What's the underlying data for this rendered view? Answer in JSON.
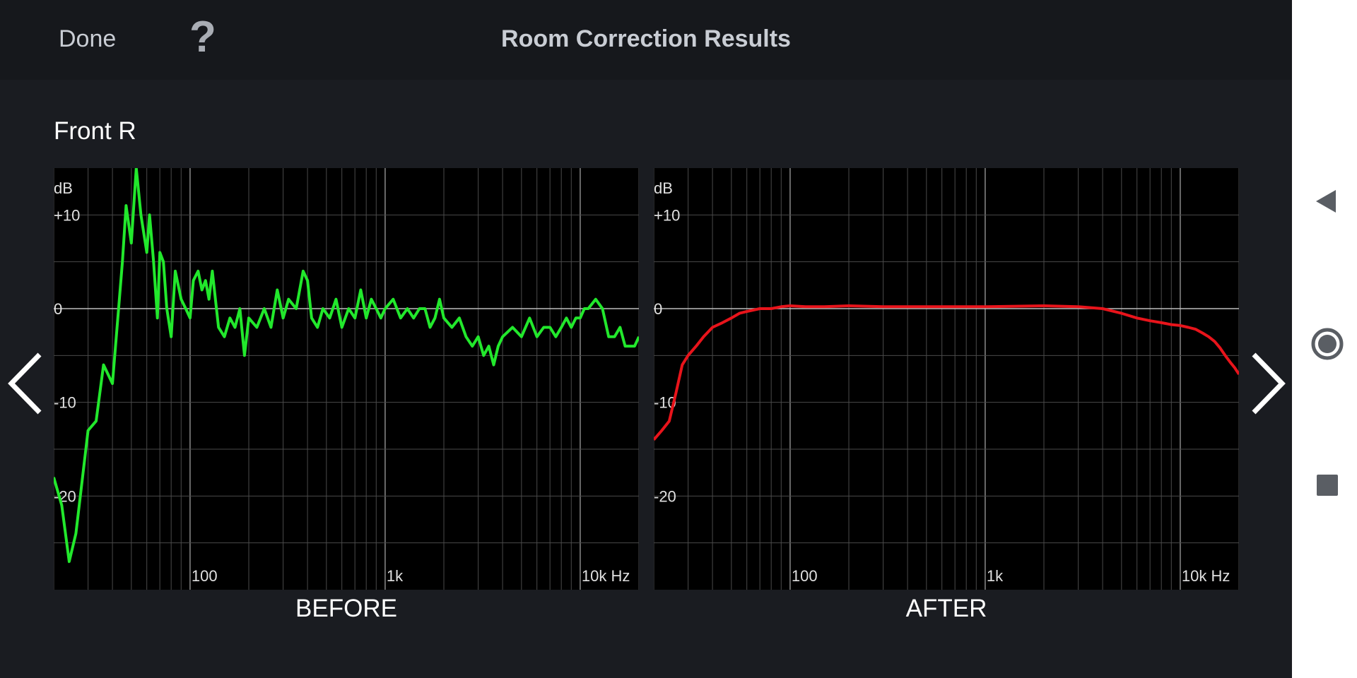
{
  "header": {
    "done_label": "Done",
    "help_label": "?",
    "title": "Room Correction Results"
  },
  "speaker_name": "Front R",
  "icons": {
    "prev": "chevron-left-icon",
    "next": "chevron-right-icon",
    "help": "question-mark-icon",
    "back": "back-triangle-icon",
    "home": "home-circle-icon",
    "recent": "recent-square-icon"
  },
  "colors": {
    "before_curve": "#22e82c",
    "after_curve": "#e8141b",
    "background": "#1a1c21",
    "plot_background": "#000000"
  },
  "chart_data": [
    {
      "type": "line",
      "caption": "BEFORE",
      "xscale": "log",
      "xlim": [
        20,
        20000
      ],
      "ylim": [
        -30,
        15
      ],
      "ylabel": "dB",
      "ytick_labels": [
        "+10",
        "0",
        "-10",
        "-20"
      ],
      "ytick_values": [
        10,
        0,
        -10,
        -20
      ],
      "xtick_labels": [
        "100",
        "1k",
        "10k Hz"
      ],
      "xtick_values": [
        100,
        1000,
        10000
      ],
      "grid": true,
      "series": [
        {
          "color": "#22e82c",
          "x": [
            20,
            22,
            24,
            26,
            30,
            33,
            36,
            40,
            43,
            45,
            47,
            50,
            53,
            56,
            60,
            62,
            65,
            68,
            70,
            73,
            76,
            80,
            84,
            90,
            95,
            100,
            104,
            110,
            115,
            120,
            125,
            130,
            140,
            150,
            160,
            170,
            180,
            190,
            200,
            220,
            240,
            260,
            280,
            300,
            320,
            350,
            380,
            400,
            420,
            450,
            480,
            520,
            560,
            600,
            650,
            700,
            750,
            800,
            850,
            900,
            950,
            1000,
            1100,
            1200,
            1300,
            1400,
            1500,
            1600,
            1700,
            1800,
            1900,
            2000,
            2200,
            2400,
            2600,
            2800,
            3000,
            3200,
            3400,
            3600,
            3800,
            4000,
            4500,
            5000,
            5500,
            6000,
            6500,
            7000,
            7500,
            8000,
            8500,
            9000,
            9500,
            10000,
            10500,
            11000,
            12000,
            13000,
            14000,
            15000,
            16000,
            17000,
            18000,
            19000,
            20000
          ],
          "values": [
            -18,
            -21,
            -27,
            -24,
            -13,
            -12,
            -6,
            -8,
            0,
            5,
            11,
            7,
            15,
            10,
            6,
            10,
            5,
            -1,
            6,
            5,
            0,
            -3,
            4,
            1,
            0,
            -1,
            3,
            4,
            2,
            3,
            1,
            4,
            -2,
            -3,
            -1,
            -2,
            0,
            -5,
            -1,
            -2,
            0,
            -2,
            2,
            -1,
            1,
            0,
            4,
            3,
            -1,
            -2,
            0,
            -1,
            1,
            -2,
            0,
            -1,
            2,
            -1,
            1,
            0,
            -1,
            0,
            1,
            -1,
            0,
            -1,
            0,
            0,
            -2,
            -1,
            1,
            -1,
            -2,
            -1,
            -3,
            -4,
            -3,
            -5,
            -4,
            -6,
            -4,
            -3,
            -2,
            -3,
            -1,
            -3,
            -2,
            -2,
            -3,
            -2,
            -1,
            -2,
            -1,
            -1,
            0,
            0,
            1,
            0,
            -3,
            -3,
            -2,
            -4,
            -4,
            -4,
            -3
          ]
        }
      ]
    },
    {
      "type": "line",
      "caption": "AFTER",
      "xscale": "log",
      "xlim": [
        20,
        20000
      ],
      "ylim": [
        -30,
        15
      ],
      "ylabel": "dB",
      "ytick_labels": [
        "+10",
        "0",
        "-10",
        "-20"
      ],
      "ytick_values": [
        10,
        0,
        -10,
        -20
      ],
      "xtick_labels": [
        "100",
        "1k",
        "10k Hz"
      ],
      "xtick_values": [
        100,
        1000,
        10000
      ],
      "grid": true,
      "series": [
        {
          "color": "#e8141b",
          "x": [
            20,
            22,
            24,
            26,
            28,
            30,
            33,
            36,
            40,
            45,
            50,
            55,
            60,
            70,
            80,
            90,
            100,
            120,
            150,
            200,
            300,
            500,
            1000,
            2000,
            3000,
            4000,
            5000,
            6000,
            7000,
            8000,
            9000,
            10000,
            11000,
            12000,
            13000,
            14000,
            15000,
            16000,
            17000,
            18000,
            19000,
            20000
          ],
          "values": [
            -14,
            -13,
            -12,
            -9,
            -6,
            -5,
            -4,
            -3,
            -2,
            -1.5,
            -1,
            -0.5,
            -0.3,
            0,
            0,
            0.2,
            0.3,
            0.2,
            0.2,
            0.3,
            0.2,
            0.2,
            0.2,
            0.3,
            0.2,
            0,
            -0.5,
            -1,
            -1.3,
            -1.5,
            -1.7,
            -1.8,
            -2,
            -2.2,
            -2.6,
            -3,
            -3.5,
            -4.2,
            -5,
            -5.7,
            -6.3,
            -7
          ]
        }
      ]
    }
  ]
}
